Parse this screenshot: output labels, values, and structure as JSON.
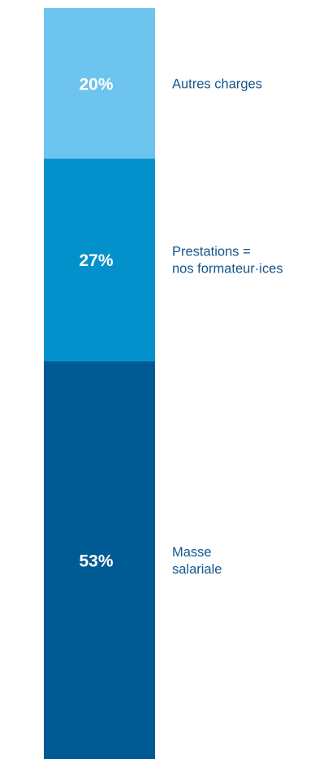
{
  "chart_data": {
    "type": "bar",
    "orientation": "stacked-vertical",
    "unit": "%",
    "segments": [
      {
        "label_lines": [
          "Masse",
          "salariale"
        ],
        "value": 53,
        "value_label": "53%",
        "color": "#005B94"
      },
      {
        "label_lines": [
          "Prestations =",
          "nos formateur·ices"
        ],
        "value": 27,
        "value_label": "27%",
        "color": "#0391CC"
      },
      {
        "label_lines": [
          "Autres charges"
        ],
        "value": 20,
        "value_label": "20%",
        "color": "#6DC4EE"
      }
    ],
    "label_color": "#14568C",
    "total": 100
  }
}
